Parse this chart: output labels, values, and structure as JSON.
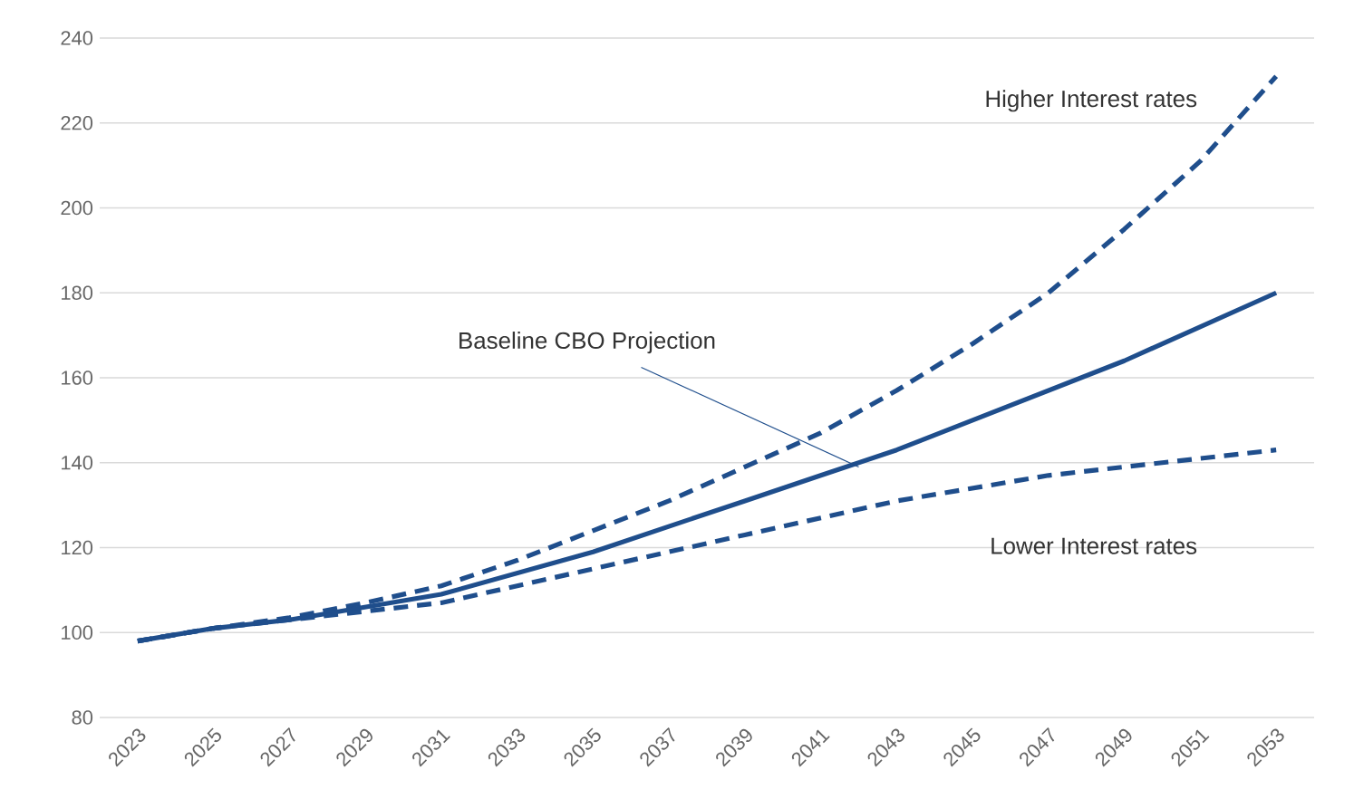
{
  "chart_data": {
    "type": "line",
    "x": [
      2023,
      2025,
      2027,
      2029,
      2031,
      2033,
      2035,
      2037,
      2039,
      2041,
      2043,
      2045,
      2047,
      2049,
      2051,
      2053
    ],
    "series": [
      {
        "name": "Higher Interest rates",
        "color": "#1f4e8c",
        "line_style": "dashed",
        "values": [
          98,
          101,
          103.5,
          107,
          111,
          117,
          124,
          131,
          139,
          147,
          157,
          168,
          180,
          195,
          211,
          231
        ]
      },
      {
        "color": "#1f4e8c",
        "line_style": "solid",
        "values": [
          98,
          101,
          103,
          106,
          109,
          114,
          119,
          125,
          131,
          137,
          143,
          150,
          157,
          164,
          172,
          180
        ]
      },
      {
        "name": "Lower Interest rates",
        "color": "#1f4e8c",
        "line_style": "dashed",
        "values": [
          98,
          101,
          103,
          105,
          107,
          111,
          115,
          119,
          123,
          127,
          131,
          134,
          137,
          139,
          141,
          143
        ]
      }
    ],
    "annotations": [
      {
        "text": "Baseline CBO Projection",
        "x": 2042,
        "y": 139
      }
    ],
    "xlim": [
      2022,
      2054
    ],
    "xticks": [
      2023,
      2025,
      2027,
      2029,
      2031,
      2033,
      2035,
      2037,
      2039,
      2041,
      2043,
      2045,
      2047,
      2049,
      2051,
      2053
    ],
    "ylim": [
      80,
      240
    ],
    "yticks": [
      80,
      100,
      120,
      140,
      160,
      180,
      200,
      220,
      240
    ],
    "grid": "y"
  }
}
